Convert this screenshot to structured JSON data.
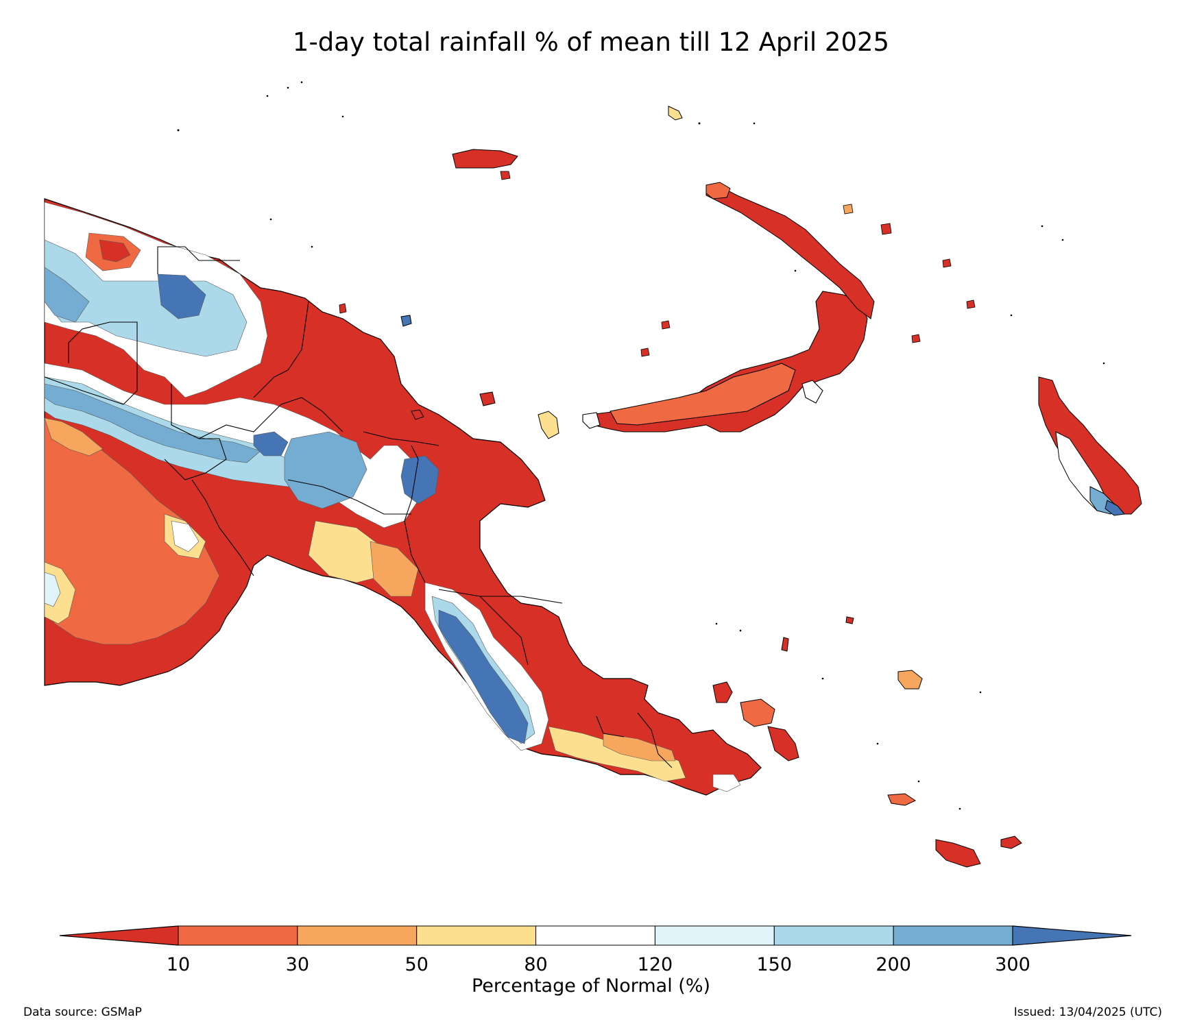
{
  "title": "1-day total rainfall % of mean till 12 April 2025",
  "colorbar": {
    "label": "Percentage of Normal (%)",
    "ticks": [
      "10",
      "30",
      "50",
      "80",
      "120",
      "150",
      "200",
      "300"
    ],
    "colors": [
      "#d73027",
      "#ef6a43",
      "#f7a75d",
      "#fde08f",
      "#ffffff",
      "#e0f3f8",
      "#abd9e9",
      "#74add1",
      "#4575b4"
    ]
  },
  "source": "Data source: GSMaP",
  "issued": "Issued: 13/04/2025 (UTC)"
}
